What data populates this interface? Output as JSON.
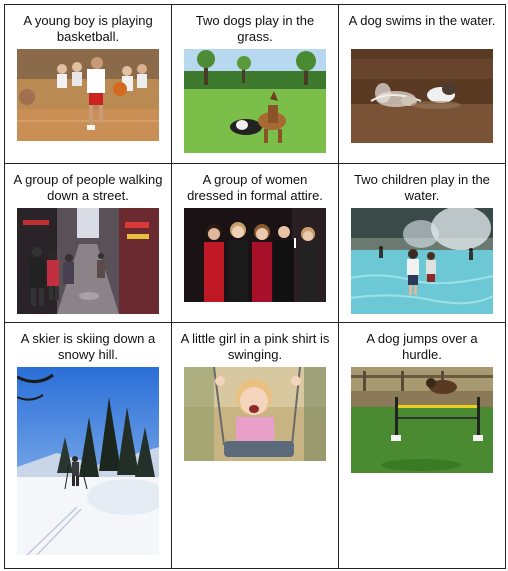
{
  "cells": [
    {
      "caption": "A young boy is playing basketball.",
      "scene": "boy-playing-basketball"
    },
    {
      "caption": "Two dogs play in the grass.",
      "scene": "two-dogs-on-grass"
    },
    {
      "caption": "A dog swims in the water.",
      "scene": "dog-swimming"
    },
    {
      "caption": "A group of people walking down a street.",
      "scene": "people-walking-street"
    },
    {
      "caption": "A group of women dressed in formal attire.",
      "scene": "women-formal-attire"
    },
    {
      "caption": "Two children play in the water.",
      "scene": "children-in-fountain"
    },
    {
      "caption": "A skier is skiing down a snowy hill.",
      "scene": "skier-snowy-hill"
    },
    {
      "caption": "A little girl in a pink shirt is swinging.",
      "scene": "girl-on-swing"
    },
    {
      "caption": "A dog jumps over a hurdle.",
      "scene": "dog-jumping-hurdle"
    }
  ]
}
